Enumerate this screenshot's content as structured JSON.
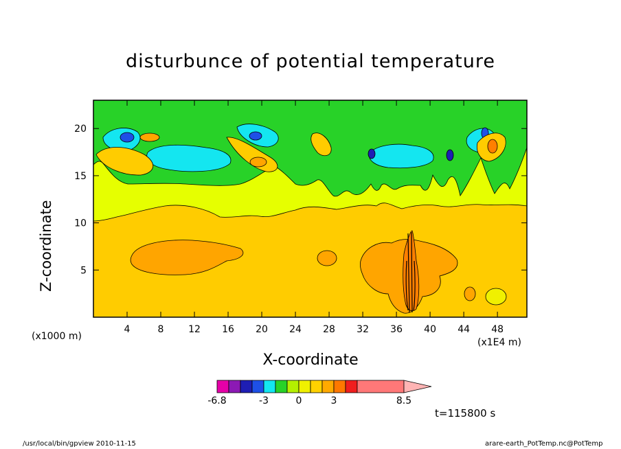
{
  "chart_data": {
    "type": "heatmap",
    "title": "disturbunce of potential temperature",
    "xlabel": "X-coordinate",
    "ylabel": "Z-coordinate",
    "x_unit": "(x1E4 m)",
    "y_unit": "(x1000 m)",
    "xlim": [
      0,
      51.5
    ],
    "ylim": [
      0,
      23
    ],
    "x_ticks": [
      4,
      8,
      12,
      16,
      20,
      24,
      28,
      32,
      36,
      40,
      44,
      48
    ],
    "y_ticks": [
      5,
      10,
      15,
      20
    ],
    "time_label": "t=115800 s",
    "colorbar": {
      "tick_labels": [
        "-6.8",
        "-3",
        "0",
        "3",
        "8.5"
      ],
      "tick_values": [
        -6.8,
        -3,
        0,
        3,
        8.5
      ],
      "colors": [
        "#e600a8",
        "#8c1ab4",
        "#1e1eb4",
        "#1e50e6",
        "#14e6f0",
        "#28d228",
        "#b4f000",
        "#f0f000",
        "#ffd200",
        "#ffaa00",
        "#ff7800",
        "#f01e1e",
        "#ff7878",
        "#ffb4b4"
      ]
    },
    "colors": {
      "green": "#28d228",
      "yellow_green": "#e6ff00",
      "yellow": "#f0f000",
      "gold": "#ffcc00",
      "orange": "#ffa500",
      "dark_orange": "#ff7f00",
      "cyan": "#14e6f0",
      "blue": "#1e50e6",
      "navy": "#1e1eb4"
    }
  },
  "footer": {
    "left": "/usr/local/bin/gpview   2010-11-15",
    "right": "arare-earth_PotTemp.nc@PotTemp"
  }
}
